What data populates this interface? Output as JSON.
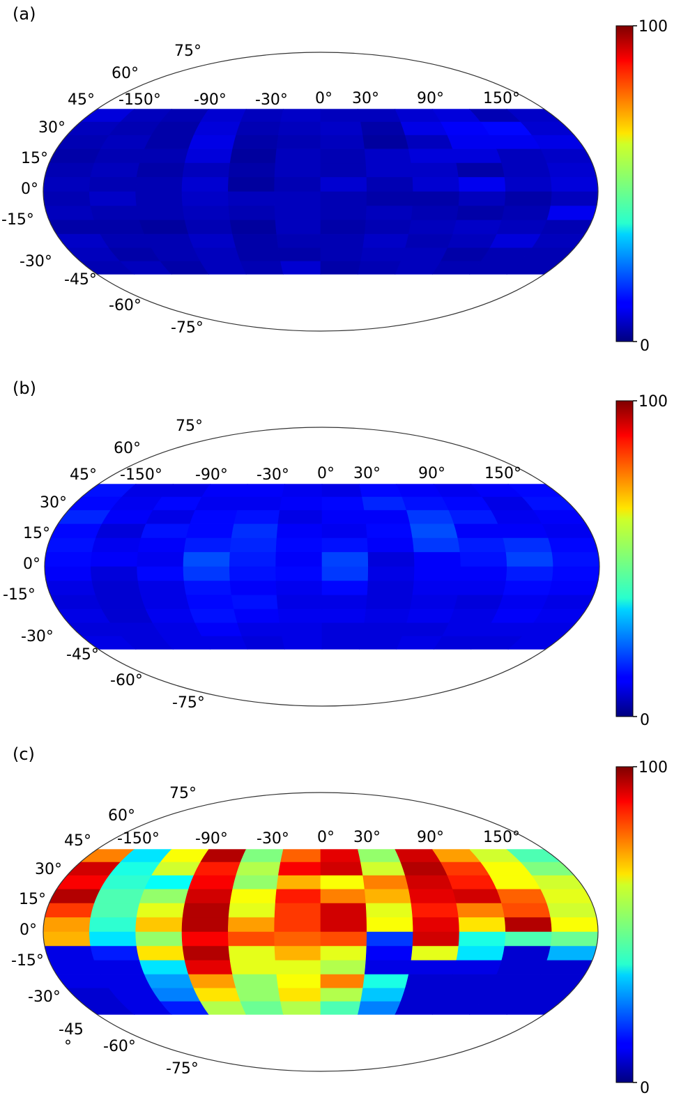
{
  "chart_data": [
    {
      "type": "heatmap",
      "panel_label": "(a)",
      "projection": "Mollweide",
      "lon_tick_labels": [
        "-150°",
        "-90°",
        "-30°",
        "0°",
        "30°",
        "90°",
        "150°"
      ],
      "lat_tick_labels": [
        "75°",
        "60°",
        "45°",
        "30°",
        "15°",
        "0°",
        "-15°",
        "-30°",
        "-45°",
        "-60°",
        "-75°"
      ],
      "data_lat_range": [
        -45,
        45
      ],
      "colorbar": {
        "colormap": "jet",
        "min": 0,
        "max": 100,
        "min_label": "0",
        "max_label": "100"
      },
      "lon_bins": [
        -180,
        -150,
        -120,
        -90,
        -60,
        -30,
        0,
        30,
        60,
        90,
        120,
        150,
        180
      ],
      "lat_bins": [
        45,
        37.5,
        30,
        22.5,
        15,
        7.5,
        0,
        -7.5,
        -15,
        -22.5,
        -30,
        -37.5,
        -45
      ],
      "values": [
        [
          9,
          6,
          5,
          8,
          6,
          7,
          6,
          6,
          8,
          9,
          5,
          7
        ],
        [
          6,
          5,
          4,
          9,
          5,
          6,
          7,
          4,
          10,
          12,
          13,
          8
        ],
        [
          5,
          6,
          4,
          10,
          4,
          5,
          6,
          3,
          6,
          11,
          11,
          10
        ],
        [
          4,
          5,
          5,
          9,
          3,
          6,
          5,
          7,
          9,
          9,
          6,
          7
        ],
        [
          5,
          6,
          4,
          6,
          4,
          6,
          5,
          7,
          7,
          4,
          6,
          8
        ],
        [
          6,
          5,
          5,
          8,
          3,
          5,
          8,
          5,
          8,
          11,
          7,
          9
        ],
        [
          5,
          7,
          5,
          7,
          6,
          6,
          5,
          4,
          4,
          6,
          4,
          6
        ],
        [
          6,
          5,
          5,
          6,
          5,
          6,
          5,
          6,
          5,
          4,
          5,
          11
        ],
        [
          4,
          4,
          3,
          5,
          3,
          6,
          4,
          5,
          6,
          7,
          6,
          5
        ],
        [
          7,
          5,
          5,
          7,
          4,
          5,
          5,
          7,
          5,
          6,
          9,
          6
        ],
        [
          6,
          4,
          5,
          6,
          4,
          4,
          5,
          6,
          6,
          4,
          5,
          5
        ],
        [
          5,
          6,
          4,
          6,
          5,
          8,
          4,
          5,
          6,
          5,
          5,
          5
        ]
      ]
    },
    {
      "type": "heatmap",
      "panel_label": "(b)",
      "projection": "Mollweide",
      "lon_tick_labels": [
        "-150°",
        "-90°",
        "-30°",
        "0°",
        "30°",
        "90°",
        "150°"
      ],
      "lat_tick_labels": [
        "75°",
        "60°",
        "45°",
        "30°",
        "15°",
        "0°",
        "-15°",
        "-30°",
        "-45°",
        "-60°",
        "-75°"
      ],
      "data_lat_range": [
        -45,
        45
      ],
      "colorbar": {
        "colormap": "jet",
        "min": 0,
        "max": 100,
        "min_label": "0",
        "max_label": "100"
      },
      "lon_bins": [
        -180,
        -150,
        -120,
        -90,
        -60,
        -30,
        0,
        30,
        60,
        90,
        120,
        150,
        180
      ],
      "lat_bins": [
        45,
        37.5,
        30,
        22.5,
        15,
        7.5,
        0,
        -7.5,
        -15,
        -22.5,
        -30,
        -37.5,
        -45
      ],
      "values": [
        [
          14,
          10,
          10,
          12,
          12,
          11,
          10,
          13,
          12,
          11,
          12,
          13
        ],
        [
          13,
          11,
          13,
          11,
          11,
          12,
          13,
          16,
          14,
          13,
          10,
          14
        ],
        [
          16,
          12,
          10,
          13,
          14,
          10,
          12,
          12,
          18,
          15,
          11,
          12
        ],
        [
          13,
          9,
          14,
          13,
          17,
          12,
          11,
          13,
          20,
          12,
          12,
          11
        ],
        [
          14,
          11,
          12,
          15,
          16,
          13,
          14,
          12,
          18,
          15,
          17,
          13
        ],
        [
          13,
          12,
          11,
          20,
          15,
          12,
          19,
          9,
          12,
          14,
          19,
          14
        ],
        [
          12,
          9,
          13,
          18,
          14,
          13,
          18,
          10,
          12,
          12,
          15,
          13
        ],
        [
          10,
          8,
          10,
          14,
          12,
          11,
          13,
          9,
          11,
          11,
          13,
          12
        ],
        [
          9,
          8,
          10,
          13,
          14,
          10,
          10,
          9,
          10,
          9,
          11,
          10
        ],
        [
          10,
          8,
          11,
          14,
          12,
          11,
          11,
          10,
          11,
          10,
          12,
          11
        ],
        [
          9,
          9,
          10,
          12,
          10,
          10,
          9,
          9,
          9,
          10,
          10,
          10
        ],
        [
          10,
          9,
          10,
          10,
          9,
          10,
          9,
          9,
          10,
          9,
          9,
          10
        ]
      ]
    },
    {
      "type": "heatmap",
      "panel_label": "(c)",
      "projection": "Mollweide",
      "lon_tick_labels": [
        "-150°",
        "-90°",
        "-30°",
        "0°",
        "30°",
        "90°",
        "150°"
      ],
      "lat_tick_labels": [
        "75°",
        "60°",
        "45°",
        "30°",
        "15°",
        "0°",
        "-15°",
        "-30°",
        "-45",
        "°",
        "-60°",
        "-75°"
      ],
      "data_lat_range": [
        -45,
        45
      ],
      "colorbar": {
        "colormap": "jet",
        "min": 0,
        "max": 100,
        "min_label": "0",
        "max_label": "100"
      },
      "lon_bins": [
        -180,
        -150,
        -120,
        -90,
        -60,
        -30,
        0,
        30,
        60,
        90,
        120,
        150,
        180
      ],
      "lat_bins": [
        45,
        37.5,
        30,
        22.5,
        15,
        7.5,
        0,
        -7.5,
        -15,
        -22.5,
        -30,
        -37.5,
        -45
      ],
      "values": [
        [
          75,
          35,
          62,
          95,
          50,
          78,
          90,
          52,
          92,
          72,
          58,
          45
        ],
        [
          92,
          40,
          58,
          85,
          55,
          88,
          92,
          58,
          95,
          82,
          62,
          50
        ],
        [
          88,
          42,
          38,
          88,
          52,
          70,
          62,
          75,
          92,
          85,
          62,
          58
        ],
        [
          95,
          45,
          52,
          92,
          62,
          85,
          75,
          70,
          90,
          92,
          78,
          60
        ],
        [
          82,
          45,
          60,
          95,
          60,
          82,
          92,
          60,
          85,
          75,
          80,
          58
        ],
        [
          72,
          42,
          68,
          95,
          72,
          82,
          92,
          62,
          90,
          65,
          95,
          62
        ],
        [
          70,
          35,
          52,
          88,
          80,
          78,
          80,
          18,
          92,
          40,
          45,
          48
        ],
        [
          10,
          15,
          65,
          95,
          60,
          70,
          60,
          12,
          60,
          35,
          8,
          30
        ],
        [
          10,
          10,
          35,
          90,
          60,
          60,
          55,
          10,
          10,
          10,
          8,
          8
        ],
        [
          10,
          10,
          28,
          72,
          52,
          62,
          75,
          40,
          8,
          8,
          8,
          8
        ],
        [
          8,
          10,
          25,
          65,
          52,
          65,
          55,
          32,
          8,
          8,
          8,
          8
        ],
        [
          8,
          10,
          15,
          55,
          48,
          55,
          45,
          25,
          8,
          8,
          8,
          8
        ]
      ]
    }
  ]
}
